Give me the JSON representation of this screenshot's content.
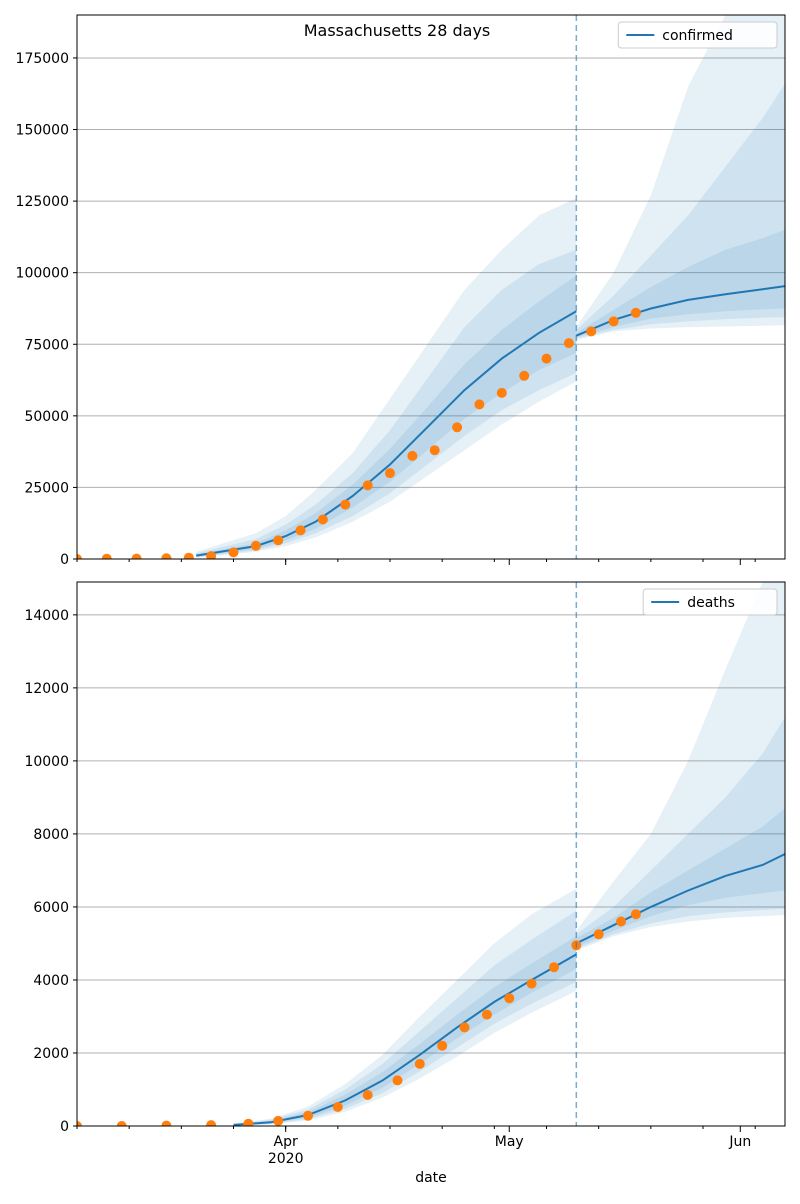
{
  "title": "Massachusetts 28 days",
  "xlabel": "date",
  "x_ticks": [
    {
      "date": "2020-04-01",
      "label": "Apr",
      "sublabel": "2020"
    },
    {
      "date": "2020-05-01",
      "label": "May",
      "sublabel": ""
    },
    {
      "date": "2020-06-01",
      "label": "Jun",
      "sublabel": ""
    }
  ],
  "colors": {
    "model": "#1f77b4",
    "observed": "#ff7f0e",
    "band": "#1f77b4",
    "grid": "#b0b0b0"
  },
  "chart_data": [
    {
      "type": "line",
      "title": "Massachusetts 28 days",
      "xlabel": "date",
      "ylabel": "",
      "xlim": [
        "2020-03-04",
        "2020-06-07"
      ],
      "ylim": [
        0,
        190000
      ],
      "yticks": [
        0,
        25000,
        50000,
        75000,
        100000,
        125000,
        150000,
        175000
      ],
      "grid": "horizontal",
      "legend": {
        "position": "top-right",
        "entries": [
          "confirmed"
        ]
      },
      "forecast_start": "2020-05-10",
      "series": [
        {
          "name": "confirmed",
          "kind": "model-line",
          "x": [
            "2020-03-20",
            "2020-03-28",
            "2020-04-01",
            "2020-04-05",
            "2020-04-10",
            "2020-04-15",
            "2020-04-20",
            "2020-04-25",
            "2020-04-30",
            "2020-05-05",
            "2020-05-10",
            "2020-05-15",
            "2020-05-20",
            "2020-05-25",
            "2020-05-30",
            "2020-06-04",
            "2020-06-07"
          ],
          "y": [
            1200,
            4500,
            8000,
            13000,
            22000,
            33000,
            46000,
            59000,
            70000,
            79000,
            86500,
            null,
            null,
            null,
            null,
            null,
            null
          ]
        },
        {
          "name": "confirmed forecast",
          "kind": "model-line",
          "x": [
            "2020-05-10",
            "2020-05-15",
            "2020-05-20",
            "2020-05-25",
            "2020-05-30",
            "2020-06-04",
            "2020-06-07"
          ],
          "y": [
            78000,
            83500,
            87500,
            90500,
            92500,
            94200,
            95300
          ]
        },
        {
          "name": "confirmed observed",
          "kind": "points",
          "x": [
            "2020-03-04",
            "2020-03-08",
            "2020-03-12",
            "2020-03-16",
            "2020-03-19",
            "2020-03-22",
            "2020-03-25",
            "2020-03-28",
            "2020-03-31",
            "2020-04-03",
            "2020-04-06",
            "2020-04-09",
            "2020-04-12",
            "2020-04-15",
            "2020-04-18",
            "2020-04-21",
            "2020-04-24",
            "2020-04-27",
            "2020-04-30",
            "2020-05-03",
            "2020-05-06",
            "2020-05-09",
            "2020-05-12",
            "2020-05-15",
            "2020-05-18"
          ],
          "y": [
            0,
            100,
            150,
            250,
            450,
            1000,
            2300,
            4600,
            6500,
            10000,
            13800,
            19000,
            25700,
            30000,
            36000,
            38000,
            46000,
            54000,
            58000,
            64000,
            70000,
            75400,
            79500,
            83000,
            86000
          ]
        }
      ],
      "bands": {
        "x": [
          "2020-03-20",
          "2020-03-28",
          "2020-04-01",
          "2020-04-05",
          "2020-04-10",
          "2020-04-15",
          "2020-04-20",
          "2020-04-25",
          "2020-04-30",
          "2020-05-05",
          "2020-05-10"
        ],
        "inner": {
          "low": [
            800,
            3500,
            6500,
            10500,
            18000,
            27000,
            38000,
            49000,
            58000,
            66000,
            72000
          ],
          "high": [
            1600,
            5500,
            10000,
            16000,
            26000,
            38500,
            53000,
            68000,
            80000,
            90000,
            99000
          ]
        },
        "middle": {
          "low": [
            600,
            3000,
            5500,
            9000,
            15000,
            23000,
            33000,
            43000,
            52000,
            59000,
            65000
          ],
          "high": [
            2000,
            7000,
            12000,
            19000,
            30000,
            45000,
            63000,
            81000,
            94000,
            103000,
            108000
          ]
        },
        "outer": {
          "low": [
            400,
            2500,
            4500,
            7500,
            13000,
            20000,
            29000,
            38000,
            47000,
            55000,
            62000
          ],
          "high": [
            2500,
            9000,
            15000,
            24000,
            37000,
            56000,
            75000,
            94000,
            108000,
            120000,
            126000
          ]
        },
        "forecast_x": [
          "2020-05-10",
          "2020-05-15",
          "2020-05-20",
          "2020-05-25",
          "2020-05-30",
          "2020-06-04",
          "2020-06-07"
        ],
        "forecast_inner": {
          "low": [
            77500,
            81000,
            84000,
            85500,
            86500,
            87200,
            87500
          ],
          "high": [
            79000,
            87000,
            95000,
            102000,
            108000,
            112000,
            115000
          ]
        },
        "forecast_middle": {
          "low": [
            77000,
            80000,
            82000,
            83000,
            83800,
            84300,
            84500
          ],
          "high": [
            80000,
            92000,
            106000,
            120000,
            137000,
            154000,
            166000
          ]
        },
        "forecast_outer": {
          "low": [
            76500,
            79500,
            80500,
            81000,
            81200,
            81500,
            81700
          ],
          "high": [
            81000,
            100000,
            127000,
            165000,
            200000,
            200000,
            200000
          ]
        }
      }
    },
    {
      "type": "line",
      "title": "",
      "xlabel": "date",
      "ylabel": "",
      "xlim": [
        "2020-03-04",
        "2020-06-07"
      ],
      "ylim": [
        0,
        14900
      ],
      "yticks": [
        0,
        2000,
        4000,
        6000,
        8000,
        10000,
        12000,
        14000
      ],
      "grid": "horizontal",
      "legend": {
        "position": "top-right",
        "entries": [
          "deaths"
        ]
      },
      "forecast_start": "2020-05-10",
      "series": [
        {
          "name": "deaths",
          "kind": "model-line",
          "x": [
            "2020-03-25",
            "2020-03-30",
            "2020-04-04",
            "2020-04-09",
            "2020-04-14",
            "2020-04-19",
            "2020-04-24",
            "2020-04-29",
            "2020-05-04",
            "2020-05-10"
          ],
          "y": [
            30,
            100,
            300,
            700,
            1250,
            1950,
            2700,
            3400,
            4000,
            4700
          ]
        },
        {
          "name": "deaths forecast",
          "kind": "model-line",
          "x": [
            "2020-05-10",
            "2020-05-15",
            "2020-05-20",
            "2020-05-25",
            "2020-05-30",
            "2020-06-04",
            "2020-06-07"
          ],
          "y": [
            5000,
            5500,
            6000,
            6450,
            6850,
            7150,
            7450
          ]
        },
        {
          "name": "deaths observed",
          "kind": "points",
          "x": [
            "2020-03-04",
            "2020-03-10",
            "2020-03-16",
            "2020-03-22",
            "2020-03-27",
            "2020-03-31",
            "2020-04-04",
            "2020-04-08",
            "2020-04-12",
            "2020-04-16",
            "2020-04-19",
            "2020-04-22",
            "2020-04-25",
            "2020-04-28",
            "2020-05-01",
            "2020-05-04",
            "2020-05-07",
            "2020-05-10",
            "2020-05-13",
            "2020-05-16",
            "2020-05-18"
          ],
          "y": [
            0,
            0,
            10,
            25,
            60,
            140,
            280,
            520,
            850,
            1250,
            1700,
            2200,
            2700,
            3050,
            3500,
            3900,
            4350,
            4950,
            5250,
            5600,
            5800
          ]
        }
      ],
      "bands": {
        "x": [
          "2020-03-25",
          "2020-03-30",
          "2020-04-04",
          "2020-04-09",
          "2020-04-14",
          "2020-04-19",
          "2020-04-24",
          "2020-04-29",
          "2020-05-04",
          "2020-05-10"
        ],
        "inner": {
          "low": [
            20,
            70,
            230,
            560,
            1050,
            1700,
            2400,
            3050,
            3650,
            4300
          ],
          "high": [
            45,
            140,
            380,
            860,
            1480,
            2250,
            3050,
            3800,
            4450,
            5200
          ]
        },
        "middle": {
          "low": [
            15,
            55,
            190,
            470,
            900,
            1500,
            2150,
            2800,
            3350,
            3950
          ],
          "high": [
            55,
            170,
            450,
            1000,
            1700,
            2600,
            3500,
            4400,
            5100,
            5900
          ]
        },
        "outer": {
          "low": [
            10,
            40,
            150,
            390,
            780,
            1300,
            1900,
            2550,
            3100,
            3700
          ],
          "high": [
            65,
            200,
            530,
            1150,
            1950,
            3000,
            4000,
            5000,
            5800,
            6500
          ]
        },
        "forecast_x": [
          "2020-05-10",
          "2020-05-15",
          "2020-05-20",
          "2020-05-25",
          "2020-05-30",
          "2020-06-04",
          "2020-06-07"
        ],
        "forecast_inner": {
          "low": [
            4900,
            5350,
            5750,
            6050,
            6250,
            6380,
            6450
          ],
          "high": [
            5150,
            5700,
            6400,
            7000,
            7600,
            8200,
            8700
          ]
        },
        "forecast_middle": {
          "low": [
            4850,
            5250,
            5550,
            5750,
            5850,
            5920,
            5950
          ],
          "high": [
            5250,
            6000,
            7000,
            8000,
            9000,
            10200,
            11200
          ]
        },
        "forecast_outer": {
          "low": [
            4800,
            5200,
            5450,
            5600,
            5700,
            5750,
            5780
          ],
          "high": [
            5350,
            6700,
            8000,
            10000,
            12500,
            14900,
            14900
          ]
        }
      }
    }
  ]
}
